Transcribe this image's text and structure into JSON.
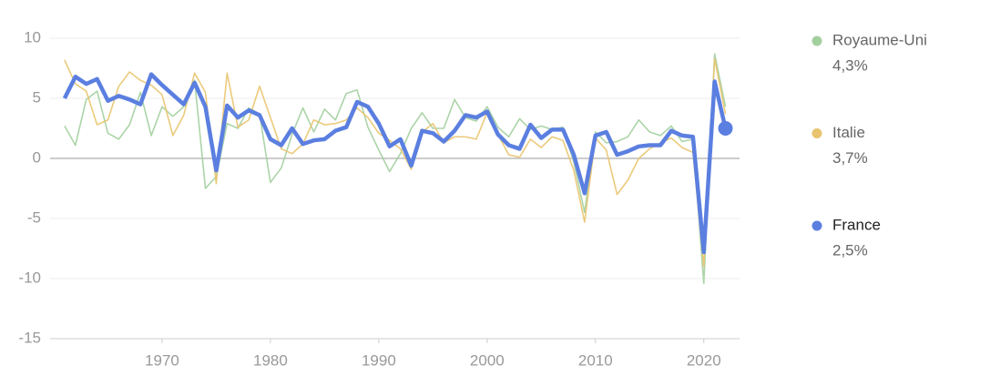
{
  "chart_data": {
    "type": "line",
    "x": [
      1961,
      1962,
      1963,
      1964,
      1965,
      1966,
      1967,
      1968,
      1969,
      1970,
      1971,
      1972,
      1973,
      1974,
      1975,
      1976,
      1977,
      1978,
      1979,
      1980,
      1981,
      1982,
      1983,
      1984,
      1985,
      1986,
      1987,
      1988,
      1989,
      1990,
      1991,
      1992,
      1993,
      1994,
      1995,
      1996,
      1997,
      1998,
      1999,
      2000,
      2001,
      2002,
      2003,
      2004,
      2005,
      2006,
      2007,
      2008,
      2009,
      2010,
      2011,
      2012,
      2013,
      2014,
      2015,
      2016,
      2017,
      2018,
      2019,
      2020,
      2021,
      2022
    ],
    "series": [
      {
        "name": "Royaume-Uni",
        "color": "#a3cf9f",
        "value_label": "4,3%",
        "values": [
          2.7,
          1.1,
          4.9,
          5.6,
          2.1,
          1.6,
          2.8,
          5.5,
          1.9,
          4.3,
          3.5,
          4.3,
          6.5,
          -2.5,
          -1.5,
          2.9,
          2.5,
          4.2,
          3.7,
          -2.0,
          -0.8,
          2.0,
          4.2,
          2.2,
          4.1,
          3.2,
          5.4,
          5.7,
          2.6,
          0.7,
          -1.1,
          0.4,
          2.5,
          3.8,
          2.5,
          2.5,
          4.9,
          3.4,
          3.1,
          4.3,
          2.6,
          1.8,
          3.3,
          2.4,
          2.7,
          2.4,
          2.6,
          -0.3,
          -4.5,
          2.2,
          1.3,
          1.4,
          1.8,
          3.2,
          2.2,
          1.9,
          2.7,
          1.4,
          1.6,
          -10.4,
          8.7,
          4.3
        ]
      },
      {
        "name": "Italie",
        "color": "#e9c46e",
        "value_label": "3,7%",
        "values": [
          8.2,
          6.2,
          5.6,
          2.8,
          3.2,
          6.0,
          7.2,
          6.5,
          6.1,
          5.3,
          1.9,
          3.6,
          7.1,
          5.5,
          -2.1,
          7.1,
          2.6,
          3.2,
          6.0,
          3.4,
          0.8,
          0.4,
          1.2,
          3.2,
          2.8,
          2.9,
          3.2,
          4.2,
          3.4,
          2.1,
          1.5,
          0.8,
          -0.9,
          2.2,
          2.9,
          1.3,
          1.8,
          1.8,
          1.6,
          3.8,
          2.0,
          0.3,
          0.1,
          1.6,
          0.9,
          1.8,
          1.5,
          -1.0,
          -5.3,
          1.7,
          0.7,
          -3.0,
          -1.8,
          0.0,
          0.8,
          1.3,
          1.7,
          0.9,
          0.5,
          -9.0,
          8.3,
          3.7
        ]
      },
      {
        "name": "France",
        "color": "#5b7fe0",
        "value_label": "2,5%",
        "values": [
          5.0,
          6.8,
          6.2,
          6.6,
          4.8,
          5.2,
          4.9,
          4.5,
          7.0,
          6.1,
          5.3,
          4.5,
          6.3,
          4.3,
          -1.0,
          4.4,
          3.4,
          4.0,
          3.6,
          1.6,
          1.1,
          2.5,
          1.2,
          1.5,
          1.6,
          2.3,
          2.6,
          4.7,
          4.3,
          2.9,
          1.0,
          1.6,
          -0.6,
          2.3,
          2.1,
          1.4,
          2.3,
          3.6,
          3.4,
          3.9,
          2.0,
          1.1,
          0.8,
          2.8,
          1.7,
          2.4,
          2.4,
          0.3,
          -2.9,
          1.9,
          2.2,
          0.3,
          0.6,
          1.0,
          1.1,
          1.1,
          2.3,
          1.9,
          1.8,
          -7.8,
          6.4,
          2.5
        ]
      }
    ],
    "xlim": [
      1960,
      2023.3
    ],
    "xticks": [
      1970,
      1980,
      1990,
      2000,
      2010,
      2020
    ],
    "ylim": [
      -15,
      10
    ],
    "yticks": [
      10,
      5,
      0,
      -5,
      -10,
      -15
    ],
    "grid": true
  }
}
